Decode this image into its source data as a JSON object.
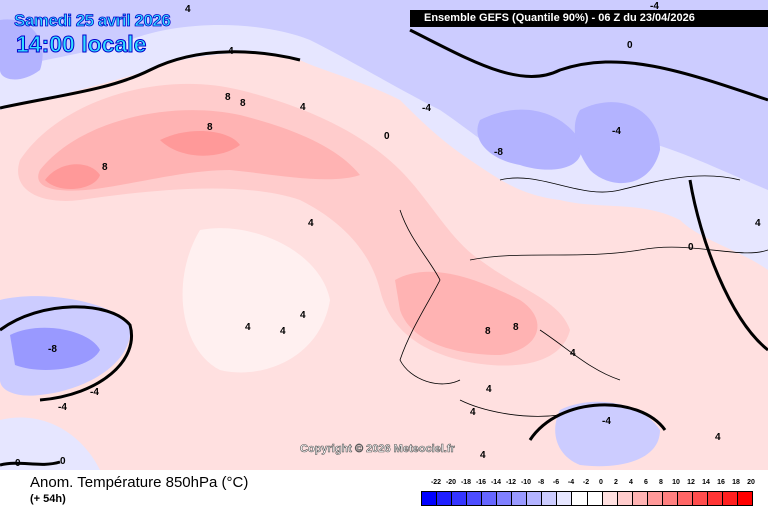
{
  "header": {
    "date": "Samedi 25 avril 2026",
    "time": "14:00 locale",
    "model_info": "Ensemble GEFS  (Quantile 90%) - 06 Z du 23/04/2026"
  },
  "map": {
    "copyright": "Copyright © 2026 Meteociel.fr",
    "contour_labels": [
      "4",
      "4",
      "4",
      "8",
      "8",
      "8",
      "8",
      "-4",
      "0",
      "-4",
      "-8",
      "-4",
      "0",
      "4",
      "4",
      "4",
      "4",
      "-8",
      "-4",
      "8",
      "8",
      "4",
      "4",
      "0",
      "4",
      "-4",
      "4",
      "0",
      "0",
      "-4",
      "4",
      "4"
    ]
  },
  "footer": {
    "title": "Anom. Température 850hPa (°C)",
    "lead": "(+ 54h)"
  },
  "legend": {
    "labels": [
      "-22",
      "-20",
      "-18",
      "-16",
      "-14",
      "-12",
      "-10",
      "-8",
      "-6",
      "-4",
      "-2",
      "0",
      "2",
      "4",
      "6",
      "8",
      "10",
      "12",
      "14",
      "16",
      "18",
      "20"
    ],
    "colors": [
      "#0000ff",
      "#1f1fff",
      "#3535ff",
      "#4d4dff",
      "#6666ff",
      "#8080ff",
      "#9999ff",
      "#b3b3ff",
      "#ccccff",
      "#e6e6ff",
      "#ffffff",
      "#ffffff",
      "#ffe0e0",
      "#ffcccc",
      "#ffb3b3",
      "#ff9999",
      "#ff8080",
      "#ff6666",
      "#ff4d4d",
      "#ff3535",
      "#ff1f1f",
      "#ff0000"
    ]
  }
}
